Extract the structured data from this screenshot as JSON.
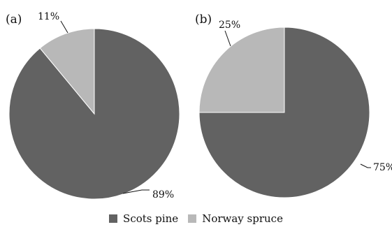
{
  "chart_data": [
    {
      "type": "pie",
      "panel_label": "(a)",
      "categories": [
        "Scots pine",
        "Norway spruce"
      ],
      "values": [
        89,
        11
      ],
      "labels": [
        "89%",
        "11%"
      ],
      "colors": [
        "#626262",
        "#b8b8b8"
      ]
    },
    {
      "type": "pie",
      "panel_label": "(b)",
      "categories": [
        "Scots pine",
        "Norway spruce"
      ],
      "values": [
        75,
        25
      ],
      "labels": [
        "75%",
        "25%"
      ],
      "colors": [
        "#626262",
        "#b8b8b8"
      ]
    }
  ],
  "legend": {
    "position": "bottom",
    "items": [
      {
        "label": "Scots pine",
        "color": "#626262"
      },
      {
        "label": "Norway spruce",
        "color": "#b8b8b8"
      }
    ]
  }
}
